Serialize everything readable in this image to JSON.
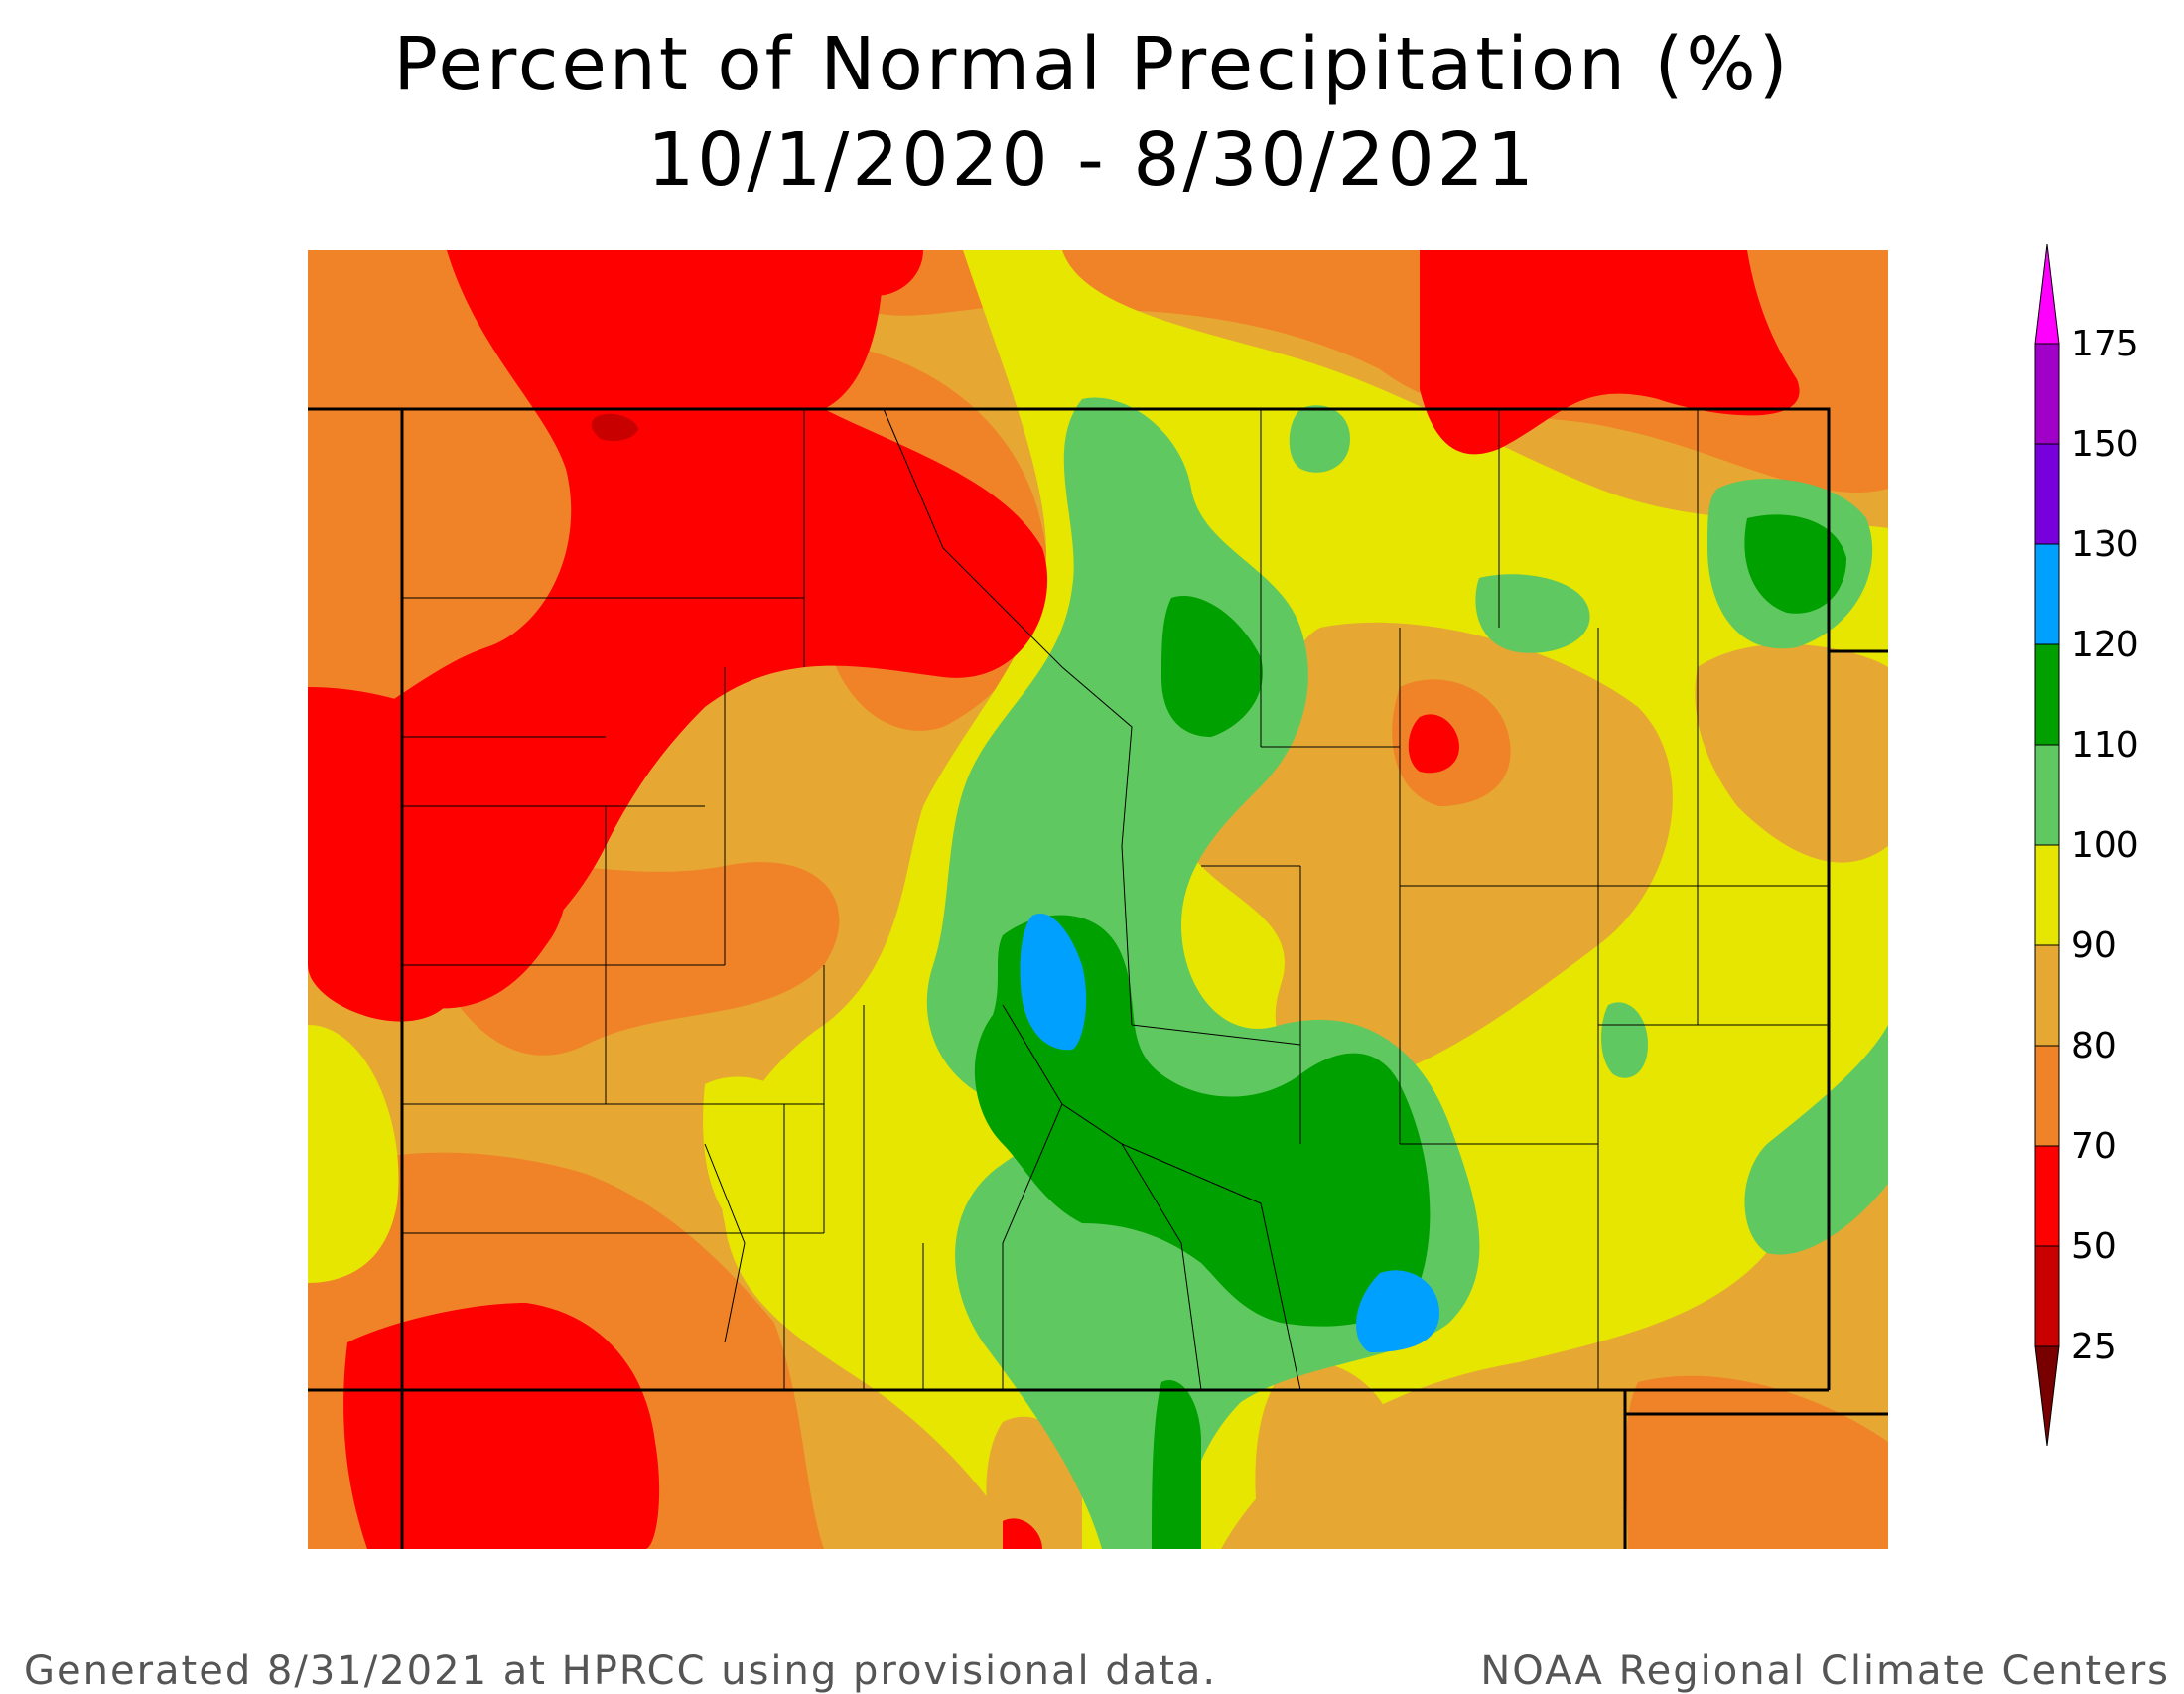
{
  "title": {
    "line1": "Percent of Normal Precipitation (%)",
    "line2": "10/1/2020 - 8/30/2021"
  },
  "footer": {
    "left": "Generated 8/31/2021 at HPRCC using provisional data.",
    "right": "NOAA Regional Climate Centers"
  },
  "legend": {
    "top_value": "175",
    "bins": [
      {
        "label": "150",
        "color": "#a000c8"
      },
      {
        "label": "130",
        "color": "#7800dc"
      },
      {
        "label": "120",
        "color": "#00a0ff"
      },
      {
        "label": "110",
        "color": "#00a000"
      },
      {
        "label": "100",
        "color": "#60c860"
      },
      {
        "label": "90",
        "color": "#e6e600"
      },
      {
        "label": "80",
        "color": "#e6a832"
      },
      {
        "label": "70",
        "color": "#f08228"
      },
      {
        "label": "50",
        "color": "#ff0000"
      },
      {
        "label": "25",
        "color": "#c80000"
      }
    ],
    "over_color": "#ff00ff",
    "under_color": "#780000"
  },
  "colors": {
    "lt50": "#c80000",
    "p50_70": "#ff0000",
    "p70_80": "#f08228",
    "p80_90": "#e6a832",
    "p90_100": "#e6e600",
    "p100_110": "#60c860",
    "p110_120": "#00a000",
    "p120_130": "#00a0ff"
  }
}
